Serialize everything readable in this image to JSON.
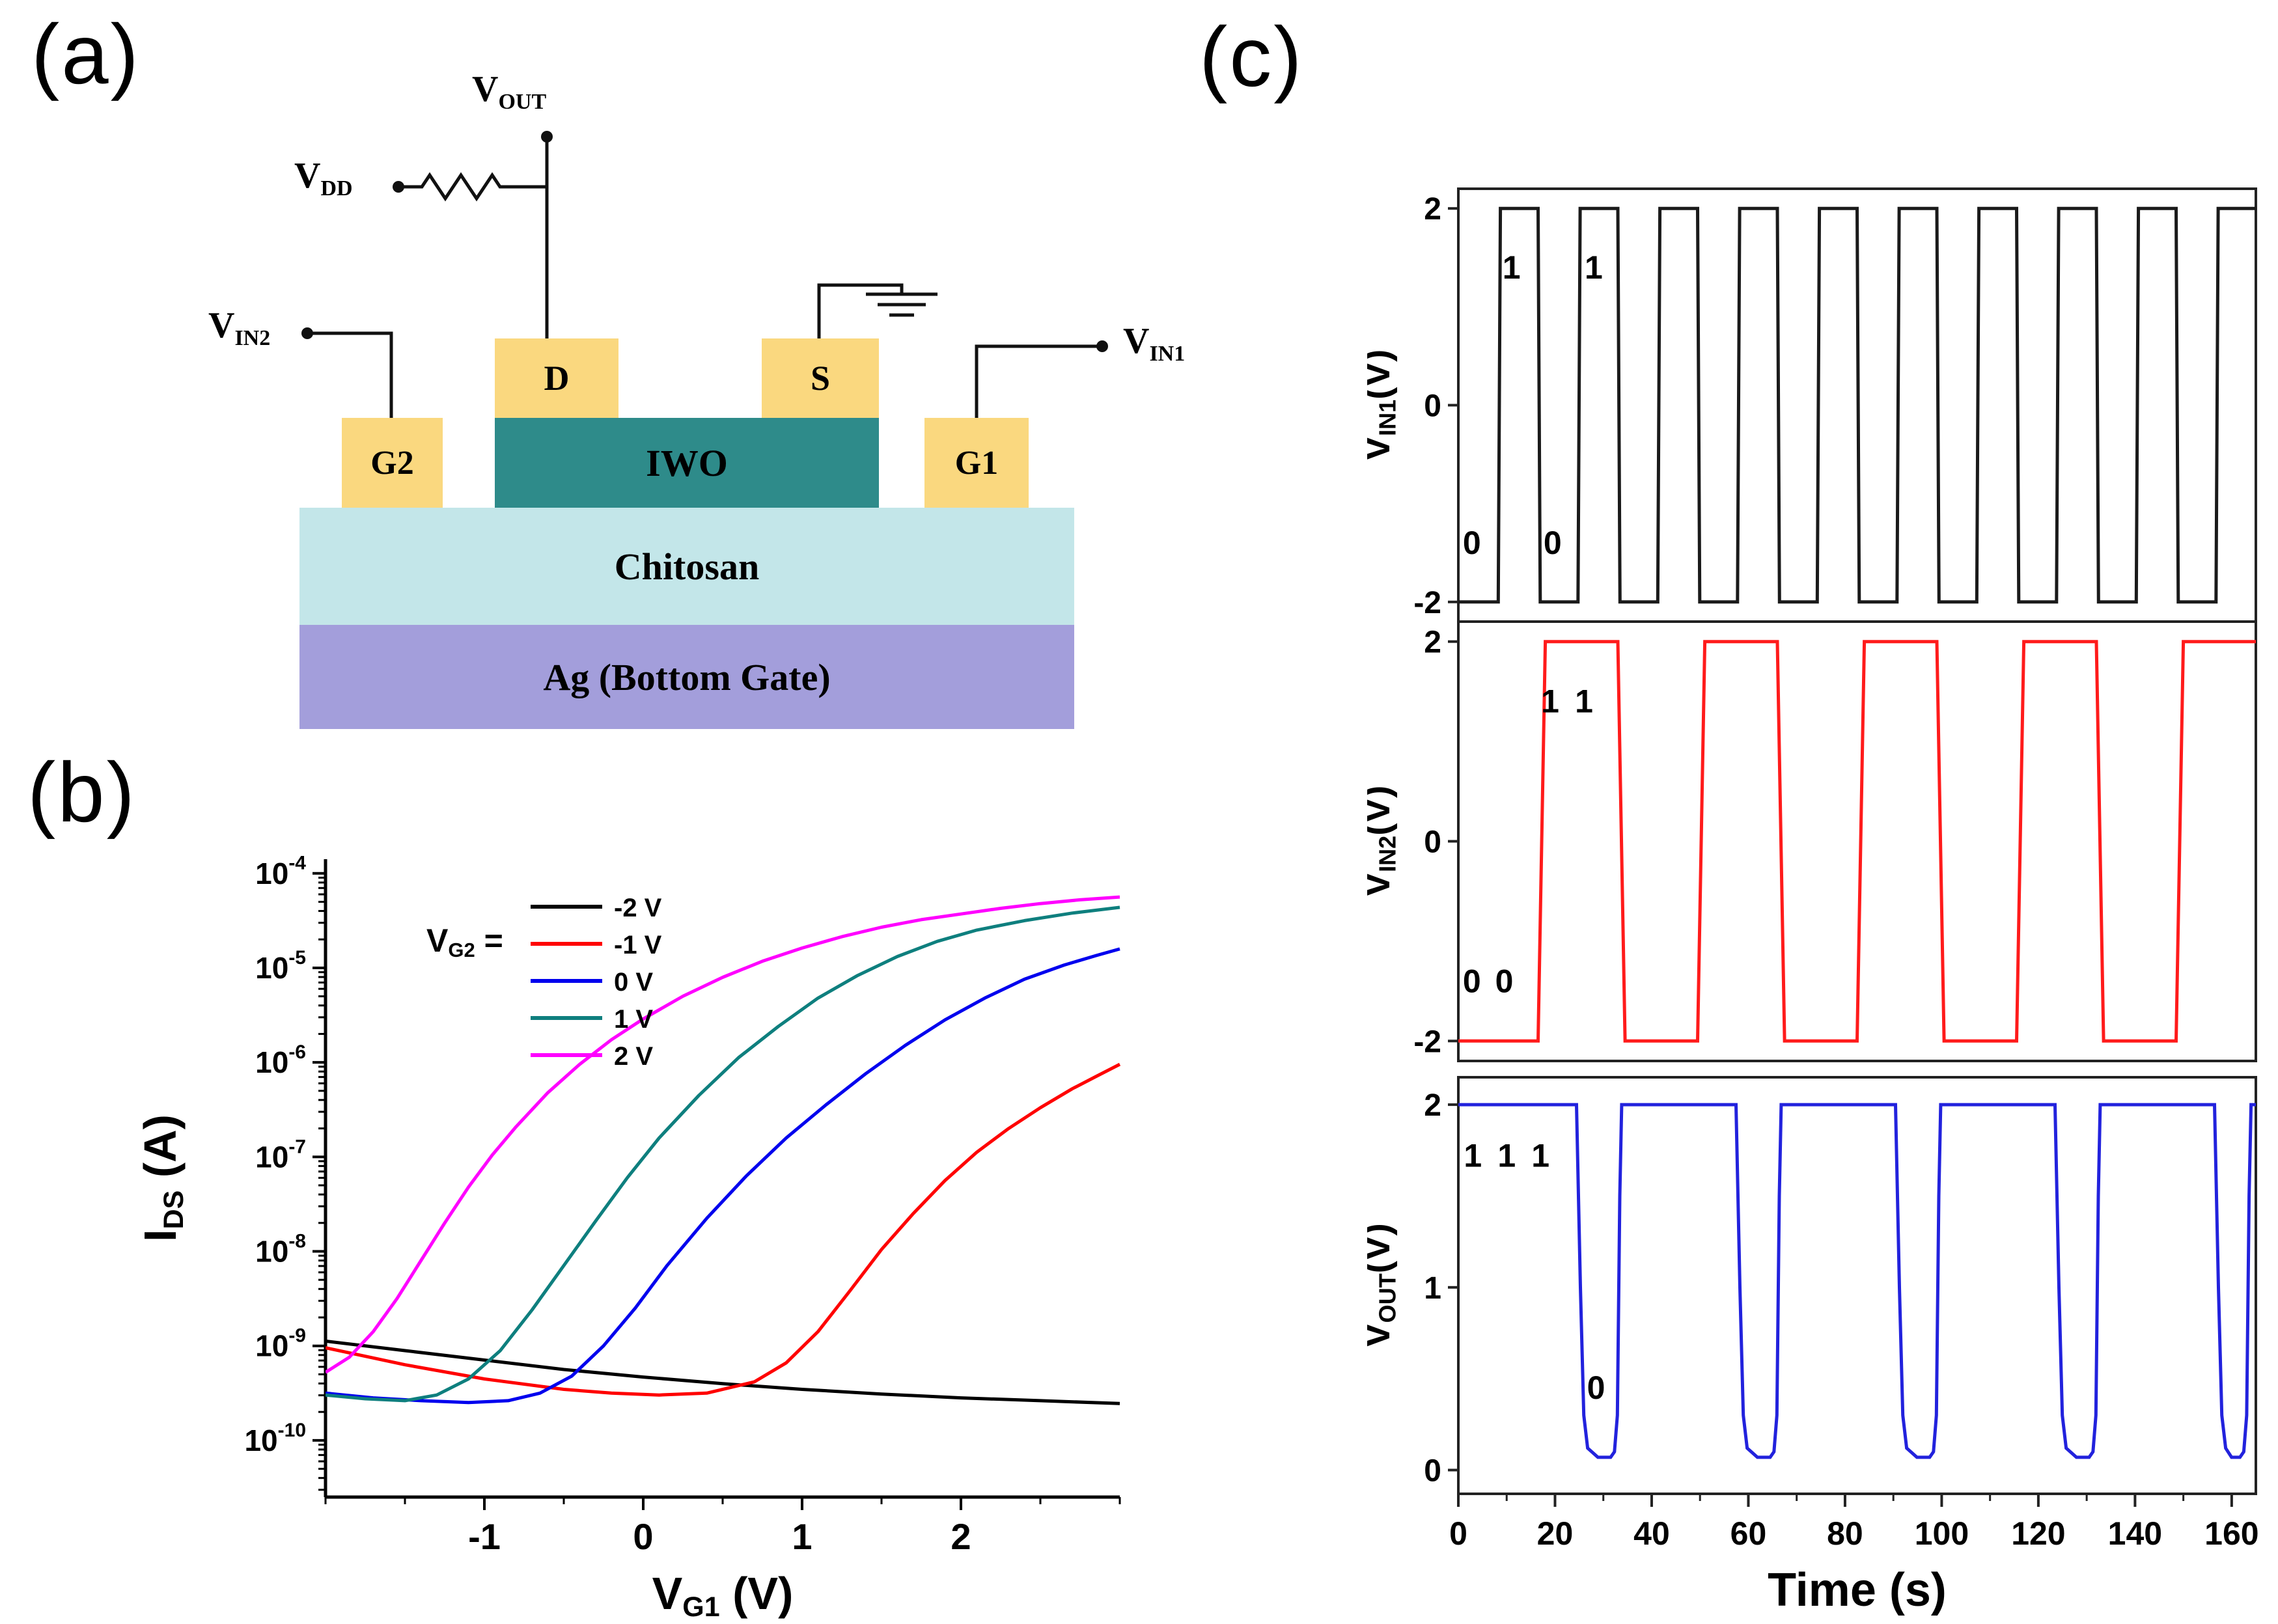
{
  "figure": {
    "panels": {
      "a": "(a)",
      "b": "(b)",
      "c": "(c)"
    }
  },
  "schematic": {
    "terminals": {
      "vout": {
        "main": "V",
        "sub": "OUT"
      },
      "vdd": {
        "main": "V",
        "sub": "DD"
      },
      "vin2": {
        "main": "V",
        "sub": "IN2"
      },
      "vin1": {
        "main": "V",
        "sub": "IN1"
      }
    },
    "blocks": {
      "drain": "D",
      "source": "S",
      "gate2": "G2",
      "gate1": "G1",
      "channel": "IWO",
      "dielectric": "Chitosan",
      "bottom_gate": "Ag (Bottom Gate)"
    },
    "colors": {
      "contact": "#FAD87F",
      "channel": "#2E8B8A",
      "dielectric": "#C3E6E9",
      "bottom_gate": "#A39EDB",
      "wire": "#111111"
    }
  },
  "chart_data": [
    {
      "id": "transfer",
      "type": "line",
      "xlabel": {
        "parts": [
          {
            "t": "V"
          },
          {
            "t": "G1",
            "sub": true
          },
          {
            "t": " (V)"
          }
        ]
      },
      "ylabel": {
        "parts": [
          {
            "t": "I"
          },
          {
            "t": "DS",
            "sub": true
          },
          {
            "t": " (A)"
          }
        ]
      },
      "xlim": [
        -2,
        3
      ],
      "x_ticks": [
        -1,
        0,
        1,
        2
      ],
      "x_minor_step": 0.5,
      "y_scale": "log",
      "ylim_exp": [
        -10.6,
        -3.85
      ],
      "y_tick_exps": [
        -4,
        -5,
        -6,
        -7,
        -8,
        -9,
        -10
      ],
      "legend": {
        "title_parts": [
          {
            "t": "V"
          },
          {
            "t": "G2",
            "sub": true
          },
          {
            "t": " ="
          }
        ],
        "position": "top-left",
        "entries": [
          {
            "label": "-2 V",
            "color": "#000000"
          },
          {
            "label": "-1 V",
            "color": "#FF0000"
          },
          {
            "label": "0 V",
            "color": "#0000EE"
          },
          {
            "label": "1 V",
            "color": "#0E7F7E"
          },
          {
            "label": "2 V",
            "color": "#FF00FF"
          }
        ]
      },
      "y_unit": "log10(A)",
      "series": [
        {
          "name": "-2 V",
          "color": "#000000",
          "log_points": [
            [
              -2,
              -8.95
            ],
            [
              -1.5,
              -9.05
            ],
            [
              -1,
              -9.15
            ],
            [
              -0.5,
              -9.25
            ],
            [
              0,
              -9.33
            ],
            [
              0.5,
              -9.4
            ],
            [
              1,
              -9.46
            ],
            [
              1.5,
              -9.51
            ],
            [
              2,
              -9.55
            ],
            [
              2.5,
              -9.58
            ],
            [
              3,
              -9.61
            ]
          ]
        },
        {
          "name": "-1 V",
          "color": "#FF0000",
          "log_points": [
            [
              -2,
              -9.02
            ],
            [
              -1.5,
              -9.2
            ],
            [
              -1,
              -9.35
            ],
            [
              -0.5,
              -9.46
            ],
            [
              -0.2,
              -9.5
            ],
            [
              0.1,
              -9.52
            ],
            [
              0.4,
              -9.5
            ],
            [
              0.7,
              -9.38
            ],
            [
              0.9,
              -9.18
            ],
            [
              1.1,
              -8.85
            ],
            [
              1.3,
              -8.42
            ],
            [
              1.5,
              -7.98
            ],
            [
              1.7,
              -7.6
            ],
            [
              1.9,
              -7.25
            ],
            [
              2.1,
              -6.95
            ],
            [
              2.3,
              -6.7
            ],
            [
              2.5,
              -6.48
            ],
            [
              2.7,
              -6.28
            ],
            [
              2.85,
              -6.15
            ],
            [
              3,
              -6.02
            ]
          ]
        },
        {
          "name": "0 V",
          "color": "#0000EE",
          "log_points": [
            [
              -2,
              -9.5
            ],
            [
              -1.7,
              -9.55
            ],
            [
              -1.4,
              -9.58
            ],
            [
              -1.1,
              -9.6
            ],
            [
              -0.85,
              -9.58
            ],
            [
              -0.65,
              -9.5
            ],
            [
              -0.45,
              -9.32
            ],
            [
              -0.25,
              -9.0
            ],
            [
              -0.05,
              -8.6
            ],
            [
              0.15,
              -8.15
            ],
            [
              0.4,
              -7.65
            ],
            [
              0.65,
              -7.2
            ],
            [
              0.9,
              -6.8
            ],
            [
              1.15,
              -6.45
            ],
            [
              1.4,
              -6.12
            ],
            [
              1.65,
              -5.82
            ],
            [
              1.9,
              -5.55
            ],
            [
              2.15,
              -5.32
            ],
            [
              2.4,
              -5.12
            ],
            [
              2.65,
              -4.97
            ],
            [
              2.85,
              -4.87
            ],
            [
              3,
              -4.8
            ]
          ]
        },
        {
          "name": "1 V",
          "color": "#0E7F7E",
          "log_points": [
            [
              -2,
              -9.52
            ],
            [
              -1.75,
              -9.56
            ],
            [
              -1.5,
              -9.58
            ],
            [
              -1.3,
              -9.52
            ],
            [
              -1.1,
              -9.35
            ],
            [
              -0.9,
              -9.05
            ],
            [
              -0.7,
              -8.62
            ],
            [
              -0.5,
              -8.15
            ],
            [
              -0.3,
              -7.68
            ],
            [
              -0.1,
              -7.22
            ],
            [
              0.1,
              -6.8
            ],
            [
              0.35,
              -6.35
            ],
            [
              0.6,
              -5.95
            ],
            [
              0.85,
              -5.62
            ],
            [
              1.1,
              -5.32
            ],
            [
              1.35,
              -5.08
            ],
            [
              1.6,
              -4.88
            ],
            [
              1.85,
              -4.72
            ],
            [
              2.1,
              -4.6
            ],
            [
              2.4,
              -4.5
            ],
            [
              2.7,
              -4.42
            ],
            [
              3,
              -4.36
            ]
          ]
        },
        {
          "name": "2 V",
          "color": "#FF00FF",
          "log_points": [
            [
              -2,
              -9.28
            ],
            [
              -1.85,
              -9.12
            ],
            [
              -1.7,
              -8.85
            ],
            [
              -1.55,
              -8.5
            ],
            [
              -1.4,
              -8.1
            ],
            [
              -1.25,
              -7.7
            ],
            [
              -1.1,
              -7.32
            ],
            [
              -0.95,
              -6.98
            ],
            [
              -0.8,
              -6.68
            ],
            [
              -0.6,
              -6.32
            ],
            [
              -0.4,
              -6.02
            ],
            [
              -0.2,
              -5.76
            ],
            [
              0,
              -5.54
            ],
            [
              0.25,
              -5.3
            ],
            [
              0.5,
              -5.1
            ],
            [
              0.75,
              -4.93
            ],
            [
              1,
              -4.79
            ],
            [
              1.25,
              -4.67
            ],
            [
              1.5,
              -4.57
            ],
            [
              1.75,
              -4.49
            ],
            [
              2,
              -4.43
            ],
            [
              2.25,
              -4.37
            ],
            [
              2.5,
              -4.32
            ],
            [
              2.75,
              -4.28
            ],
            [
              3,
              -4.25
            ]
          ]
        }
      ]
    },
    {
      "id": "vin1",
      "type": "line",
      "kind": "logic-waveform",
      "color": "#1A1A1A",
      "ylabel_parts": [
        {
          "t": "V"
        },
        {
          "t": "IN1",
          "sub": true
        },
        {
          "t": "(V)"
        }
      ],
      "xlim": [
        0,
        165
      ],
      "ylim": [
        -2.2,
        2.2
      ],
      "y_ticks": [
        2,
        0,
        -2
      ],
      "square": {
        "low": -2,
        "high": 2,
        "period": 16.5,
        "t_end": 165,
        "slew": 0.45
      },
      "annotations": [
        {
          "text": "0",
          "t": 2.8,
          "v": -1.4
        },
        {
          "text": "1",
          "t": 11,
          "v": 1.4
        },
        {
          "text": "0",
          "t": 19.5,
          "v": -1.4
        },
        {
          "text": "1",
          "t": 28,
          "v": 1.4
        }
      ]
    },
    {
      "id": "vin2",
      "type": "line",
      "kind": "logic-waveform",
      "color": "#FF1B1B",
      "ylabel_parts": [
        {
          "t": "V"
        },
        {
          "t": "IN2",
          "sub": true
        },
        {
          "t": "(V)"
        }
      ],
      "xlim": [
        0,
        165
      ],
      "ylim": [
        -2.2,
        2.2
      ],
      "y_ticks": [
        2,
        0,
        -2
      ],
      "square": {
        "low": -2,
        "high": 2,
        "period": 33,
        "t_end": 165,
        "slew": 1.5
      },
      "annotations": [
        {
          "text": "0",
          "t": 2.8,
          "v": -1.4
        },
        {
          "text": "0",
          "t": 9.5,
          "v": -1.4
        },
        {
          "text": "1",
          "t": 19,
          "v": 1.4
        },
        {
          "text": "1",
          "t": 26,
          "v": 1.4
        }
      ]
    },
    {
      "id": "vout",
      "type": "line",
      "kind": "logic-waveform",
      "color": "#2222DD",
      "ylabel_parts": [
        {
          "t": "V"
        },
        {
          "t": "OUT",
          "sub": true
        },
        {
          "t": "(V)"
        }
      ],
      "xlim": [
        0,
        165
      ],
      "ylim": [
        -0.13,
        2.15
      ],
      "y_ticks": [
        2,
        1,
        0
      ],
      "nand": {
        "high": 2,
        "floor": 0.07,
        "t_end": 165,
        "dips": [
          [
            24.75,
            33
          ],
          [
            57.75,
            66
          ],
          [
            90.75,
            99
          ],
          [
            123.75,
            132
          ],
          [
            156.75,
            163.2
          ]
        ]
      },
      "x_ticks": [
        0,
        20,
        40,
        60,
        80,
        100,
        120,
        140,
        160
      ],
      "x_minor_step": 10,
      "xlabel": "Time (s)",
      "annotations": [
        {
          "text": "1",
          "t": 3,
          "v": 1.72
        },
        {
          "text": "1",
          "t": 10,
          "v": 1.72
        },
        {
          "text": "1",
          "t": 17,
          "v": 1.72
        },
        {
          "text": "0",
          "t": 28.5,
          "v": 0.45
        }
      ]
    }
  ]
}
